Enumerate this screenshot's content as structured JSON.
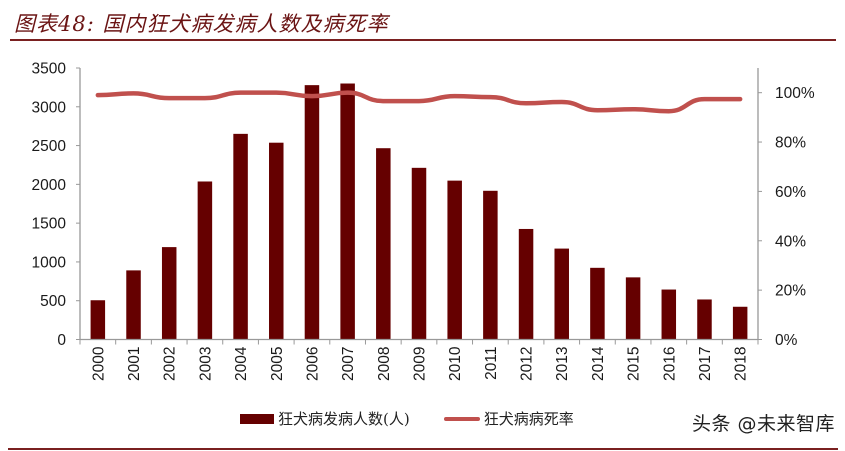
{
  "title": "图表48: 国内狂犬病发病人数及病死率",
  "watermark": "头条 @未来智库",
  "legend": {
    "bar_label": "狂犬病发病人数(人)",
    "line_label": "狂犬病病死率"
  },
  "colors": {
    "bar": "#650000",
    "line": "#c0504d",
    "axis": "#999999",
    "rule": "#7a2020"
  },
  "chart_data": {
    "type": "bar+line",
    "title": "图表48: 国内狂犬病发病人数及病死率",
    "categories": [
      "2000",
      "2001",
      "2002",
      "2003",
      "2004",
      "2005",
      "2006",
      "2007",
      "2008",
      "2009",
      "2010",
      "2011",
      "2012",
      "2013",
      "2014",
      "2015",
      "2016",
      "2017",
      "2018"
    ],
    "series": [
      {
        "name": "狂犬病发病人数(人)",
        "type": "bar",
        "axis": "left",
        "values": [
          506,
          891,
          1191,
          2037,
          2651,
          2537,
          3279,
          3300,
          2466,
          2213,
          2048,
          1917,
          1425,
          1172,
          924,
          801,
          644,
          516,
          422
        ]
      },
      {
        "name": "狂犬病病死率",
        "type": "line",
        "axis": "right",
        "values": [
          0.99,
          0.997,
          0.978,
          0.978,
          1.0,
          1.0,
          0.986,
          1.0,
          0.966,
          0.966,
          0.986,
          0.982,
          0.957,
          0.962,
          0.929,
          0.933,
          0.925,
          0.974,
          0.974
        ]
      }
    ],
    "y_left": {
      "min": 0,
      "max": 3500,
      "ticks": [
        0,
        500,
        1000,
        1500,
        2000,
        2500,
        3000,
        3500
      ]
    },
    "y_right": {
      "min": 0,
      "max": 1.1,
      "ticks": [
        0,
        0.2,
        0.4,
        0.6,
        0.8,
        1.0
      ],
      "tick_labels": [
        "0%",
        "20%",
        "40%",
        "60%",
        "80%",
        "100%"
      ]
    },
    "xlabel": "",
    "ylabel_left": "",
    "ylabel_right": "",
    "grid": false,
    "legend_position": "bottom"
  }
}
